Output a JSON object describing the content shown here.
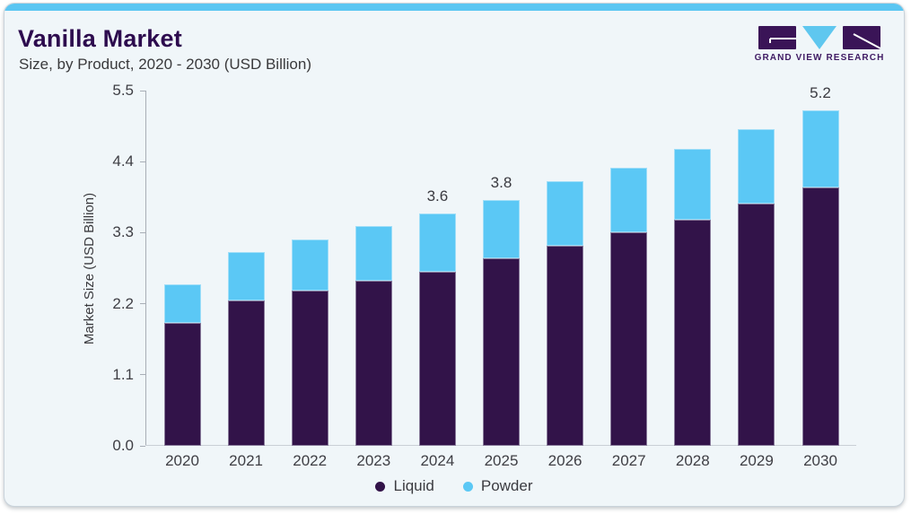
{
  "header": {
    "title": "Vanilla Market",
    "subtitle": "Size, by Product, 2020 - 2030 (USD Billion)"
  },
  "logo": {
    "text": "GRAND VIEW RESEARCH",
    "mark_purple": "#3A1457",
    "mark_blue": "#5FC7EF"
  },
  "theme": {
    "card_background": "#F0F6F9",
    "card_border": "#C9D3DB",
    "top_stripe": "#5AC6F2",
    "axis_line_color": "#A8AEB6",
    "baseline_color": "#C9CFD6",
    "title_color": "#2D0B4E",
    "text_color": "#3E3E44"
  },
  "chart_data": {
    "type": "bar",
    "stacked": true,
    "title": "Vanilla Market Size, by Product, 2020 - 2030 (USD Billion)",
    "ylabel": "Market Size (USD Billion)",
    "xlabel": "",
    "categories": [
      "2020",
      "2021",
      "2022",
      "2023",
      "2024",
      "2025",
      "2026",
      "2027",
      "2028",
      "2029",
      "2030"
    ],
    "series": [
      {
        "name": "Liquid",
        "color": "#321349",
        "values": [
          1.9,
          2.25,
          2.4,
          2.55,
          2.7,
          2.9,
          3.1,
          3.3,
          3.5,
          3.75,
          4.0
        ]
      },
      {
        "name": "Powder",
        "color": "#5BC8F5",
        "values": [
          0.6,
          0.75,
          0.8,
          0.85,
          0.9,
          0.9,
          1.0,
          1.0,
          1.1,
          1.15,
          1.2
        ]
      }
    ],
    "visible_total_labels": [
      {
        "category": "2024",
        "text": "3.6"
      },
      {
        "category": "2025",
        "text": "3.8"
      },
      {
        "category": "2030",
        "text": "5.2"
      }
    ],
    "yticks": [
      "0.0",
      "1.1",
      "2.2",
      "3.3",
      "4.4",
      "5.5"
    ],
    "ylim": [
      0,
      5.5
    ],
    "grid": false,
    "legend": {
      "position": "bottom",
      "items": [
        "Liquid",
        "Powder"
      ]
    }
  }
}
